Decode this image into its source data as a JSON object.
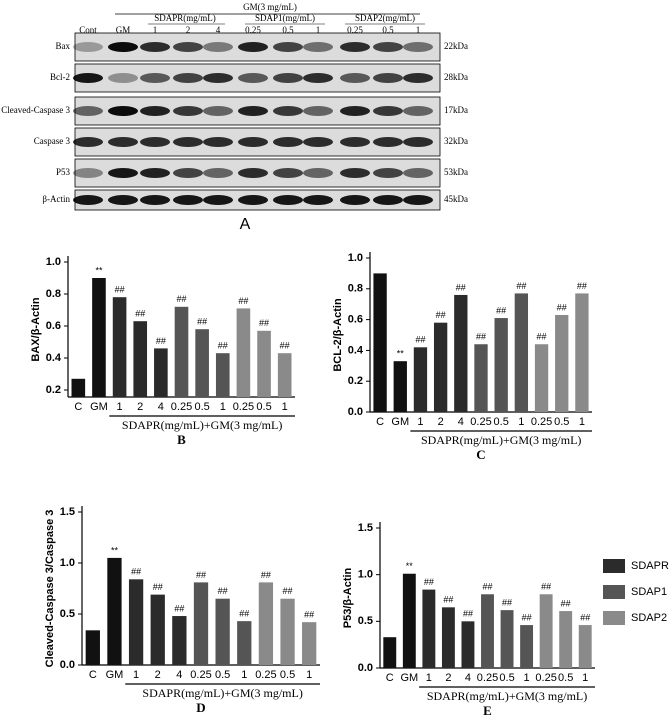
{
  "blot": {
    "treatment": "GM(3 mg/mL)",
    "groups": [
      "SDAPR(mg/mL)",
      "SDAP1(mg/mL)",
      "SDAP2(mg/mL)"
    ],
    "lanes": [
      "Cont",
      "GM",
      "1",
      "2",
      "4",
      "0.25",
      "0.5",
      "1",
      "0.25",
      "0.5",
      "1"
    ],
    "rows": [
      {
        "protein": "Bax",
        "size": "22kDa"
      },
      {
        "protein": "Bcl-2",
        "size": "28kDa"
      },
      {
        "protein": "Cleaved-Caspase 3",
        "size": "17kDa"
      },
      {
        "protein": "Caspase 3",
        "size": "32kDa"
      },
      {
        "protein": "P53",
        "size": "53kDa"
      },
      {
        "protein": "β-Actin",
        "size": "45kDa"
      }
    ],
    "label": "A"
  },
  "legend": [
    {
      "name": "SDAPR",
      "color": "#2b2b2b"
    },
    {
      "name": "SDAP1",
      "color": "#555555"
    },
    {
      "name": "SDAP2",
      "color": "#8a8a8a"
    }
  ],
  "chart_data": [
    {
      "type": "bar",
      "ylabel": "BAX/β-Actin",
      "xlabel": "SDAPR(mg/mL)+GM(3 mg/mL)",
      "panel": "B",
      "categories": [
        "C",
        "GM",
        "1",
        "2",
        "4",
        "0.25",
        "0.5",
        "1",
        "0.25",
        "0.5",
        "1"
      ],
      "values": [
        0.27,
        0.9,
        0.78,
        0.63,
        0.46,
        0.72,
        0.58,
        0.43,
        0.71,
        0.57,
        0.43
      ],
      "annotations": [
        null,
        "**",
        "##",
        "##",
        "##",
        "##",
        "##",
        "##",
        "##",
        "##",
        "##"
      ],
      "colors": [
        "#111111",
        "#111111",
        "#2b2b2b",
        "#2b2b2b",
        "#2b2b2b",
        "#555555",
        "#555555",
        "#555555",
        "#8a8a8a",
        "#8a8a8a",
        "#8a8a8a"
      ],
      "ylim": [
        0.2,
        1.0
      ],
      "yticks": [
        0.2,
        0.4,
        0.6,
        0.8,
        {
          "value": 1.0,
          "label": "1.0"
        }
      ]
    },
    {
      "type": "bar",
      "ylabel": "BCL-2/β-Actin",
      "xlabel": "SDAPR(mg/mL)+GM(3 mg/mL)",
      "panel": "C",
      "categories": [
        "C",
        "GM",
        "1",
        "2",
        "4",
        "0.25",
        "0.5",
        "1",
        "0.25",
        "0.5",
        "1"
      ],
      "values": [
        0.9,
        0.33,
        0.42,
        0.58,
        0.76,
        0.44,
        0.61,
        0.77,
        0.44,
        0.63,
        0.77
      ],
      "annotations": [
        null,
        "**",
        "##",
        "##",
        "##",
        "##",
        "##",
        "##",
        "##",
        "##",
        "##"
      ],
      "colors": [
        "#111111",
        "#111111",
        "#2b2b2b",
        "#2b2b2b",
        "#2b2b2b",
        "#555555",
        "#555555",
        "#555555",
        "#8a8a8a",
        "#8a8a8a",
        "#8a8a8a"
      ],
      "ylim": [
        0,
        1.0
      ],
      "yticks": [
        {
          "value": 0,
          "label": "0.0"
        },
        0.2,
        0.4,
        0.6,
        0.8,
        {
          "value": 1.0,
          "label": "1.0"
        }
      ]
    },
    {
      "type": "bar",
      "ylabel": "Cleaved-Caspase 3/Caspase 3",
      "xlabel": "SDAPR(mg/mL)+GM(3 mg/mL)",
      "panel": "D",
      "categories": [
        "C",
        "GM",
        "1",
        "2",
        "4",
        "0.25",
        "0.5",
        "1",
        "0.25",
        "0.5",
        "1"
      ],
      "values": [
        0.34,
        1.05,
        0.84,
        0.69,
        0.48,
        0.81,
        0.65,
        0.43,
        0.81,
        0.65,
        0.42
      ],
      "annotations": [
        null,
        "**",
        "##",
        "##",
        "##",
        "##",
        "##",
        "##",
        "##",
        "##",
        "##"
      ],
      "colors": [
        "#111111",
        "#111111",
        "#2b2b2b",
        "#2b2b2b",
        "#2b2b2b",
        "#555555",
        "#555555",
        "#555555",
        "#8a8a8a",
        "#8a8a8a",
        "#8a8a8a"
      ],
      "ylim": [
        0,
        1.5
      ],
      "yticks": [
        {
          "value": 0,
          "label": "0.0"
        },
        0.5,
        {
          "value": 1.0,
          "label": "1.0"
        },
        1.5
      ]
    },
    {
      "type": "bar",
      "ylabel": "P53/β-Actin",
      "xlabel": "SDAPR(mg/mL)+GM(3 mg/mL)",
      "panel": "E",
      "categories": [
        "C",
        "GM",
        "1",
        "2",
        "4",
        "0.25",
        "0.5",
        "1",
        "0.25",
        "0.5",
        "1"
      ],
      "values": [
        0.33,
        1.01,
        0.84,
        0.65,
        0.5,
        0.79,
        0.62,
        0.46,
        0.79,
        0.61,
        0.46
      ],
      "annotations": [
        null,
        "**",
        "##",
        "##",
        "##",
        "##",
        "##",
        "##",
        "##",
        "##",
        "##"
      ],
      "colors": [
        "#111111",
        "#111111",
        "#2b2b2b",
        "#2b2b2b",
        "#2b2b2b",
        "#555555",
        "#555555",
        "#555555",
        "#8a8a8a",
        "#8a8a8a",
        "#8a8a8a"
      ],
      "ylim": [
        0,
        1.5
      ],
      "yticks": [
        {
          "value": 0,
          "label": "0.0"
        },
        0.5,
        {
          "value": 1.0,
          "label": "1.0"
        },
        1.5
      ]
    }
  ]
}
